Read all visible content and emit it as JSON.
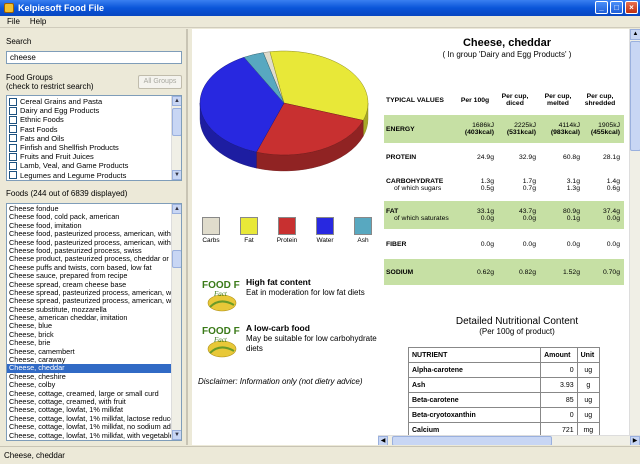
{
  "window": {
    "title": "Kelpiesoft Food File"
  },
  "menu": {
    "file": "File",
    "help": "Help"
  },
  "search": {
    "label": "Search",
    "value": "cheese"
  },
  "food_groups": {
    "label": "Food Groups",
    "hint": "(check to restrict search)",
    "all_button": "All Groups",
    "items": [
      "Cereal Grains and Pasta",
      "Dairy and Egg Products",
      "Ethnic Foods",
      "Fast Foods",
      "Fats and Oils",
      "Finfish and Shellfish Products",
      "Fruits and Fruit Juices",
      "Lamb, Veal, and Game Products",
      "Legumes and Legume Products"
    ]
  },
  "foods": {
    "label": "Foods (244 out of 6839 displayed)",
    "selected": "Cheese, cheddar",
    "items": [
      "Cheese fondue",
      "Cheese food, cold pack, american",
      "Cheese food, imitation",
      "Cheese food, pasteurized process, american, with di s",
      "Cheese food, pasteurized process, american, without",
      "Cheese food, pasteurized process, swiss",
      "Cheese product, pasteurized process, cheddar or ame",
      "Cheese puffs and twists, corn based, low fat",
      "Cheese sauce, prepared from recipe",
      "Cheese spread, cream cheese base",
      "Cheese spread, pasteurized process, american, with d",
      "Cheese spread, pasteurized process, american, witho",
      "Cheese substitute, mozzarella",
      "Cheese, american cheddar, imitation",
      "Cheese, blue",
      "Cheese, brick",
      "Cheese, brie",
      "Cheese, camembert",
      "Cheese, caraway",
      "Cheese, cheddar",
      "Cheese, cheshire",
      "Cheese, colby",
      "Cheese, cottage, creamed, large or small curd",
      "Cheese, cottage, creamed, with fruit",
      "Cheese, cottage, lowfat, 1% milkfat",
      "Cheese, cottage, lowfat, 1% milkfat, lactose reduced",
      "Cheese, cottage, lowfat, 1% milkfat, no sodium adde",
      "Cheese, cottage, lowfat, 1% milkfat, with vegetables"
    ]
  },
  "legend": [
    {
      "label": "Carbs",
      "color": "#e0dccc"
    },
    {
      "label": "Fat",
      "color": "#e8e838"
    },
    {
      "label": "Protein",
      "color": "#c83030"
    },
    {
      "label": "Water",
      "color": "#2828e0"
    },
    {
      "label": "Ash",
      "color": "#58a8c0"
    }
  ],
  "chart_data": {
    "type": "pie",
    "categories": [
      "Carbs",
      "Fat",
      "Protein",
      "Water",
      "Ash"
    ],
    "values": [
      1.3,
      33.1,
      24.9,
      36.8,
      3.9
    ],
    "colors": [
      "#e0dccc",
      "#e8e838",
      "#c83030",
      "#2828e0",
      "#58a8c0"
    ],
    "title": ""
  },
  "facts": [
    {
      "icon_label": "FOOD Fact",
      "title": "High fat content",
      "text": "Eat in moderation for low fat diets"
    },
    {
      "icon_label": "FOOD Fact",
      "title": "A low-carb food",
      "text": "May be suitable for low carbohydrate diets"
    }
  ],
  "disclaimer": "Disclaimer: Information only (not dietry advice)",
  "food": {
    "title": "Cheese, cheddar",
    "group": "( In group 'Dairy and Egg Products' )"
  },
  "typical": {
    "header": [
      "TYPICAL VALUES",
      "Per 100g",
      "Per cup, diced",
      "Per cup, melted",
      "Per cup, shredded"
    ],
    "energy": {
      "name": "ENERGY",
      "vals": [
        "1686kJ",
        "2225kJ",
        "4114kJ",
        "1905kJ"
      ],
      "kcal": [
        "(403kcal)",
        "(531kcal)",
        "(983kcal)",
        "(455kcal)"
      ]
    },
    "protein": {
      "name": "PROTEIN",
      "vals": [
        "24.9g",
        "32.9g",
        "60.8g",
        "28.1g"
      ]
    },
    "carb": {
      "name": "CARBOHYDRATE",
      "sub": "of which sugars",
      "vals": [
        "1.3g",
        "1.7g",
        "3.1g",
        "1.4g"
      ],
      "subvals": [
        "0.5g",
        "0.7g",
        "1.3g",
        "0.6g"
      ]
    },
    "fat": {
      "name": "FAT",
      "sub": "of which saturates",
      "vals": [
        "33.1g",
        "43.7g",
        "80.9g",
        "37.4g"
      ],
      "subvals": [
        "0.0g",
        "0.0g",
        "0.1g",
        "0.0g"
      ]
    },
    "fiber": {
      "name": "FIBER",
      "vals": [
        "0.0g",
        "0.0g",
        "0.0g",
        "0.0g"
      ]
    },
    "sodium": {
      "name": "SODIUM",
      "vals": [
        "0.62g",
        "0.82g",
        "1.52g",
        "0.70g"
      ]
    }
  },
  "detail": {
    "title": "Detailed Nutritional Content",
    "subtitle": "(Per 100g of product)",
    "headers": [
      "NUTRIENT",
      "Amount",
      "Unit"
    ],
    "rows": [
      {
        "name": "Alpha-carotene",
        "amount": "0",
        "unit": "ug"
      },
      {
        "name": "Ash",
        "amount": "3.93",
        "unit": "g"
      },
      {
        "name": "Beta-carotene",
        "amount": "85",
        "unit": "ug"
      },
      {
        "name": "Beta-cryotoxanthin",
        "amount": "0",
        "unit": "ug"
      },
      {
        "name": "Calcium",
        "amount": "721",
        "unit": "mg"
      }
    ]
  },
  "status": "Cheese, cheddar"
}
